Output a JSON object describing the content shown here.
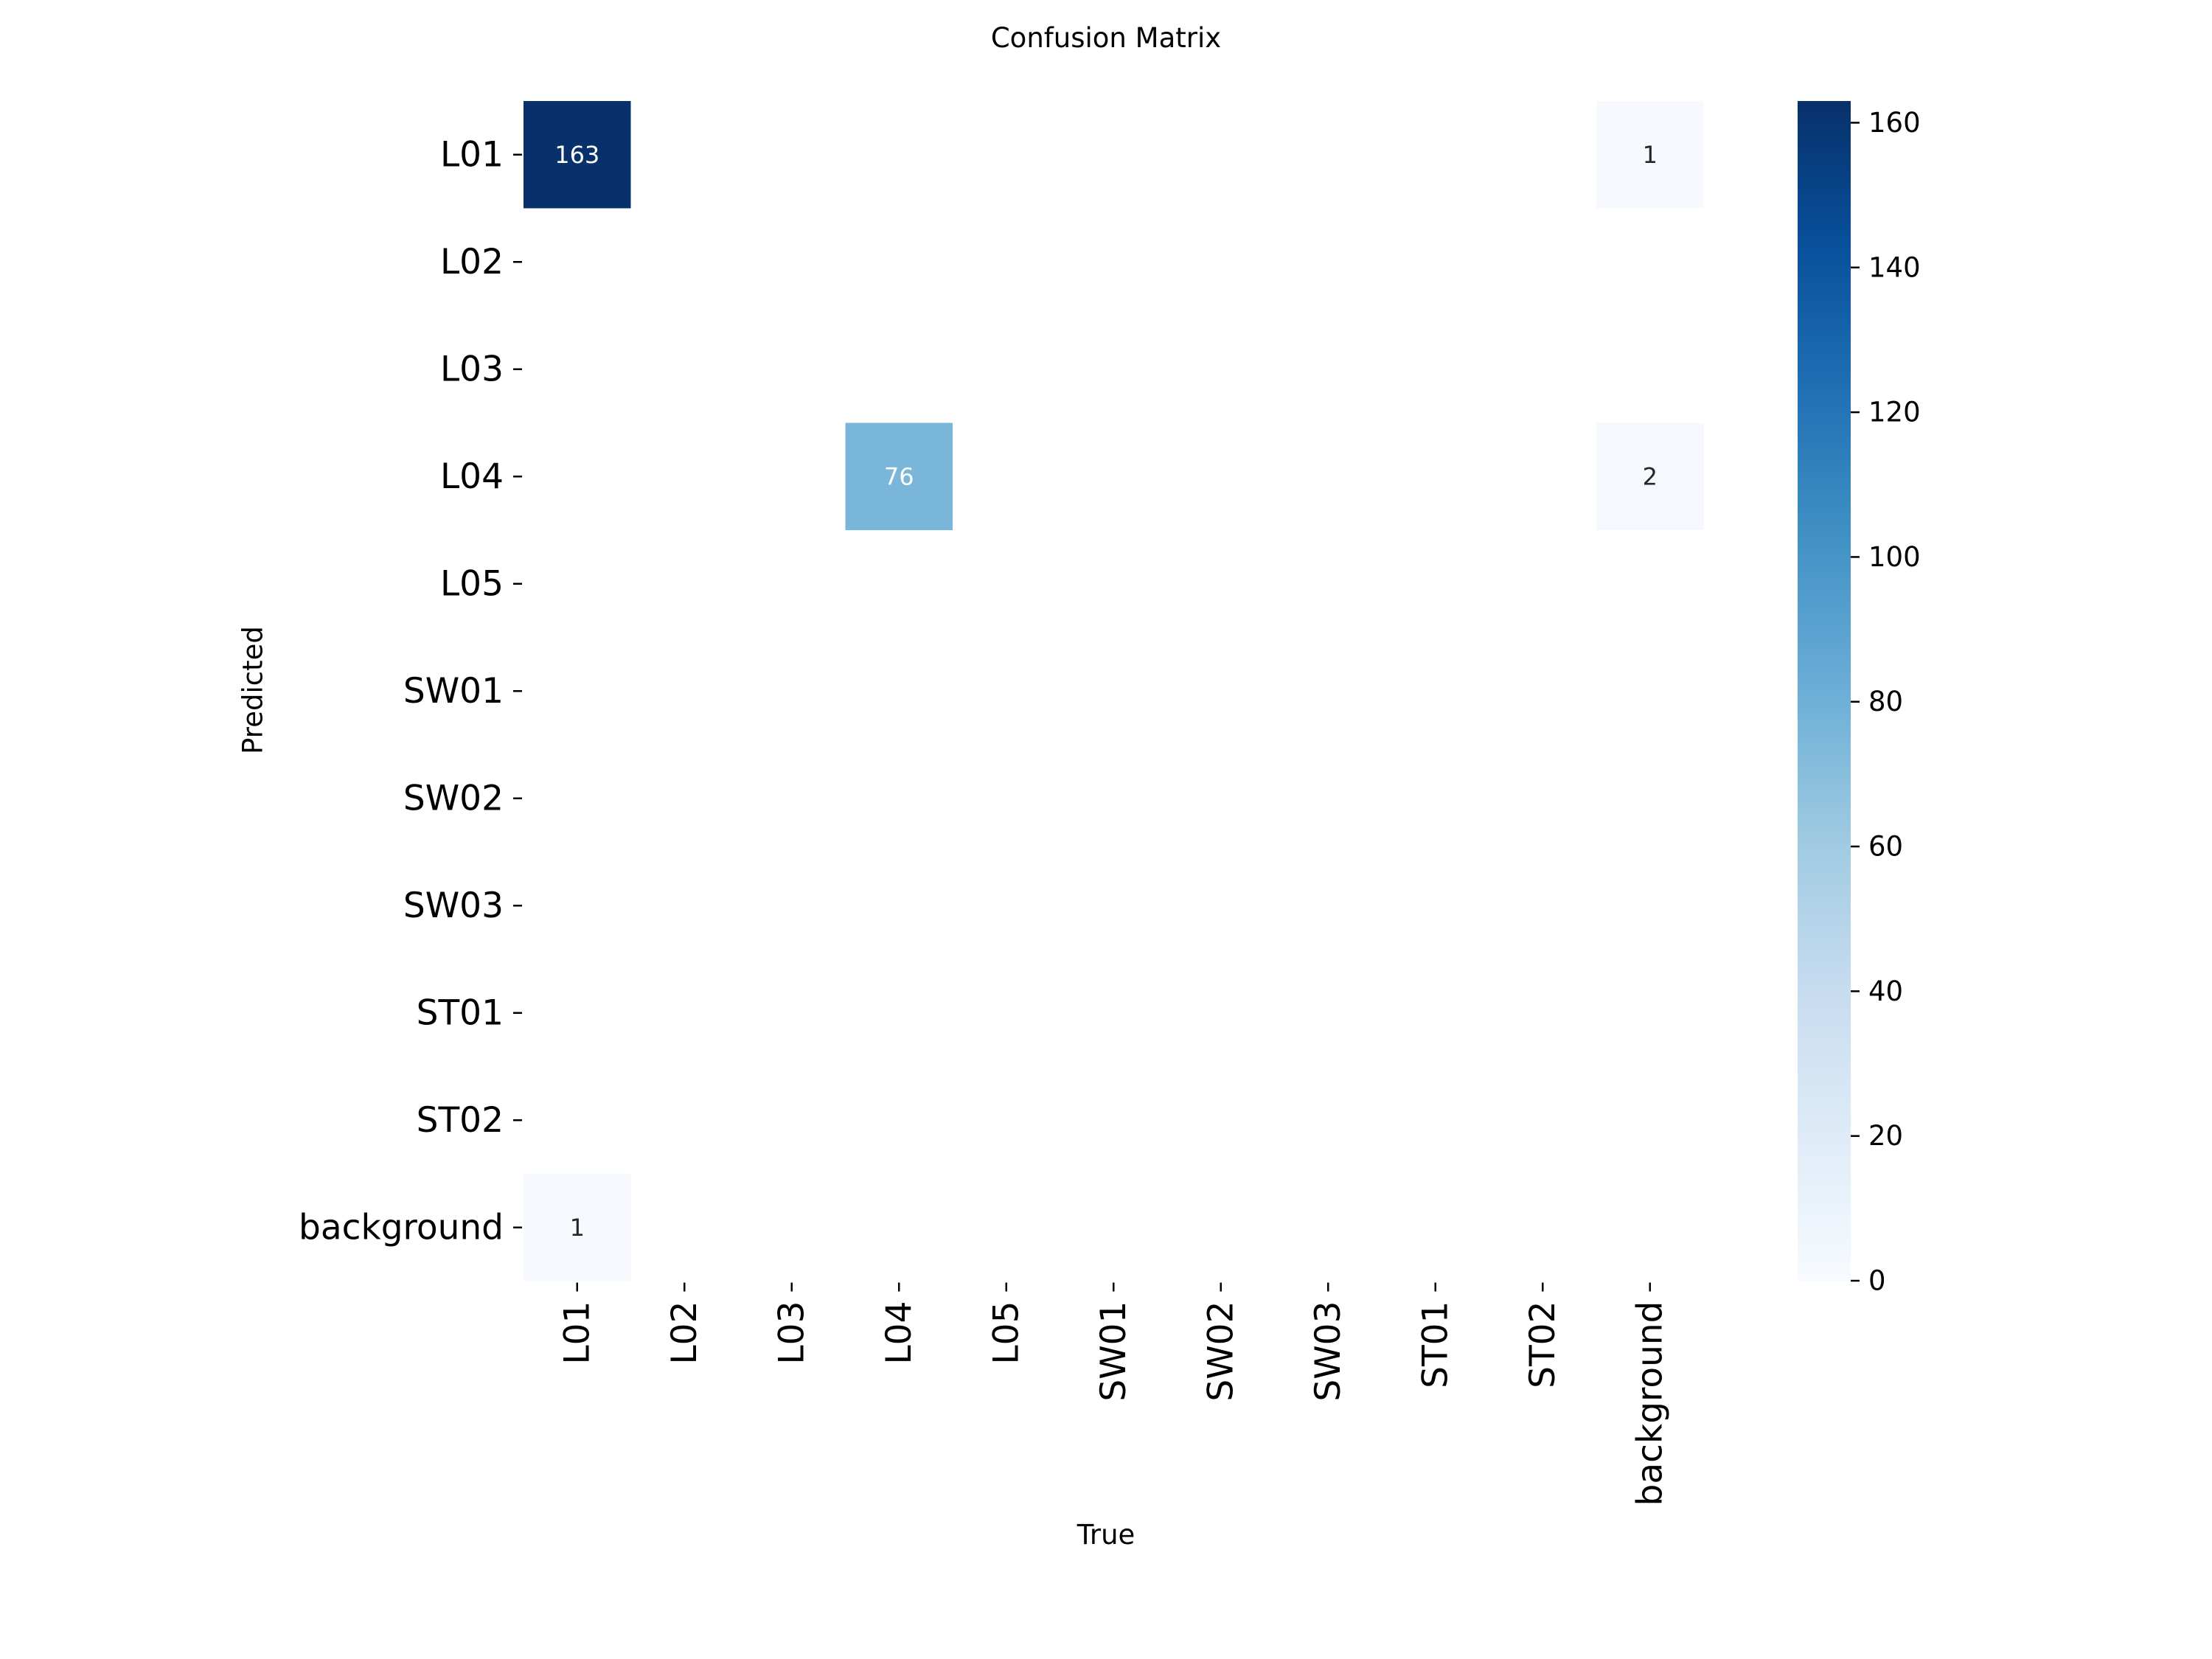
{
  "chart_data": {
    "type": "heatmap",
    "title": "Confusion Matrix",
    "xlabel": "True",
    "ylabel": "Predicted",
    "x_categories": [
      "L01",
      "L02",
      "L03",
      "L04",
      "L05",
      "SW01",
      "SW02",
      "SW03",
      "ST01",
      "ST02",
      "background"
    ],
    "y_categories": [
      "L01",
      "L02",
      "L03",
      "L04",
      "L05",
      "SW01",
      "SW02",
      "SW03",
      "ST01",
      "ST02",
      "background"
    ],
    "cells": [
      {
        "row": "L01",
        "col": "L01",
        "value": 163,
        "label": "163"
      },
      {
        "row": "L01",
        "col": "background",
        "value": 1,
        "label": "1"
      },
      {
        "row": "L04",
        "col": "L04",
        "value": 76,
        "label": "76"
      },
      {
        "row": "L04",
        "col": "background",
        "value": 2,
        "label": "2"
      },
      {
        "row": "background",
        "col": "L01",
        "value": 1,
        "label": "1"
      }
    ],
    "colorbar": {
      "range": [
        0,
        163
      ],
      "ticks": [
        "0",
        "20",
        "40",
        "60",
        "80",
        "100",
        "120",
        "140",
        "160"
      ],
      "colormap": "Blues",
      "color_stops": [
        "#f7fbff",
        "#deebf7",
        "#c6dbef",
        "#9ecae1",
        "#6baed6",
        "#4292c6",
        "#2171b5",
        "#08519c",
        "#08306b"
      ]
    }
  }
}
